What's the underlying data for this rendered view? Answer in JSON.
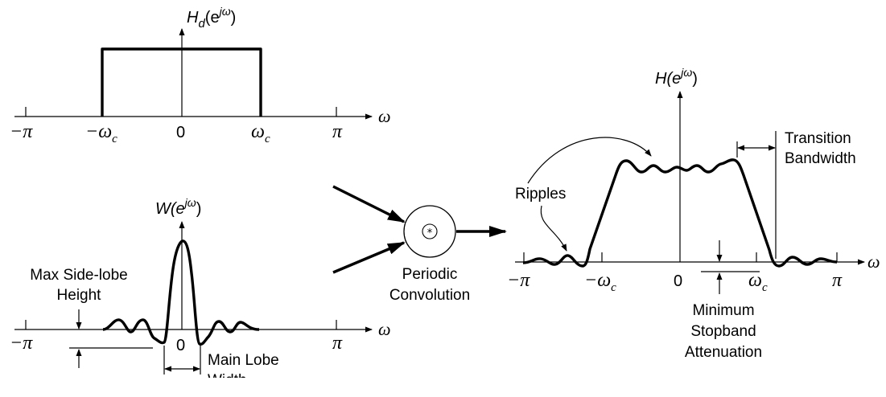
{
  "desired": {
    "label_main": "H",
    "label_sub": "d",
    "label_arg": "(e",
    "label_sup": "jω",
    "label_close": ")",
    "ticks": [
      "−π",
      "−ω",
      "0",
      "ω",
      "π"
    ],
    "tick_sub": "c",
    "axis": "ω"
  },
  "window": {
    "label_main": "W(e",
    "label_sup": "jω",
    "label_close": ")",
    "ticks": [
      "−π",
      "0",
      "π"
    ],
    "axis": "ω",
    "max_sidelobe": [
      "Max Side-lobe",
      "Height"
    ],
    "main_lobe": [
      "Main Lobe",
      "Width"
    ]
  },
  "convolution": {
    "symbol": "*",
    "label": [
      "Periodic",
      "Convolution"
    ]
  },
  "result": {
    "label_main": "H(e",
    "label_sup": "jω",
    "label_close": ")",
    "ticks": [
      "−π",
      "−ω",
      "0",
      "ω",
      "π"
    ],
    "tick_sub": "c",
    "axis": "ω",
    "ripples": "Ripples",
    "transition": [
      "Transition",
      "Bandwidth"
    ],
    "stopband": [
      "Minimum",
      "Stopband",
      "Attenuation"
    ]
  }
}
